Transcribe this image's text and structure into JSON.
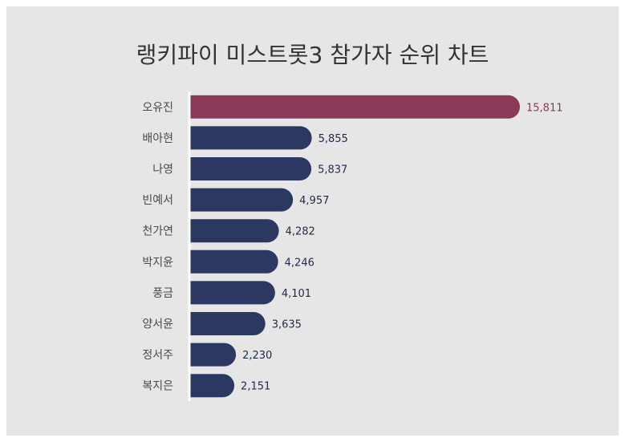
{
  "title": "랭키파이 미스트롯3 참가자 순위 차트",
  "colors": {
    "background": "#e6e6e6",
    "highlight": "#8a3a58",
    "bar": "#2b3862",
    "label_default": "#1f2a4a"
  },
  "chart_data": {
    "type": "bar",
    "orientation": "horizontal",
    "title": "랭키파이 미스트롯3 참가자 순위 차트",
    "xlabel": "",
    "ylabel": "",
    "grid": false,
    "categories": [
      "오유진",
      "배아현",
      "나영",
      "빈예서",
      "천가연",
      "박지윤",
      "풍금",
      "양서윤",
      "정서주",
      "복지은"
    ],
    "values": [
      15811,
      5855,
      5837,
      4957,
      4282,
      4246,
      4101,
      3635,
      2230,
      2151
    ],
    "value_labels": [
      "15,811",
      "5,855",
      "5,837",
      "4,957",
      "4,282",
      "4,246",
      "4,101",
      "3,635",
      "2,230",
      "2,151"
    ],
    "highlight_index": 0,
    "xlim": [
      0,
      15811
    ]
  }
}
